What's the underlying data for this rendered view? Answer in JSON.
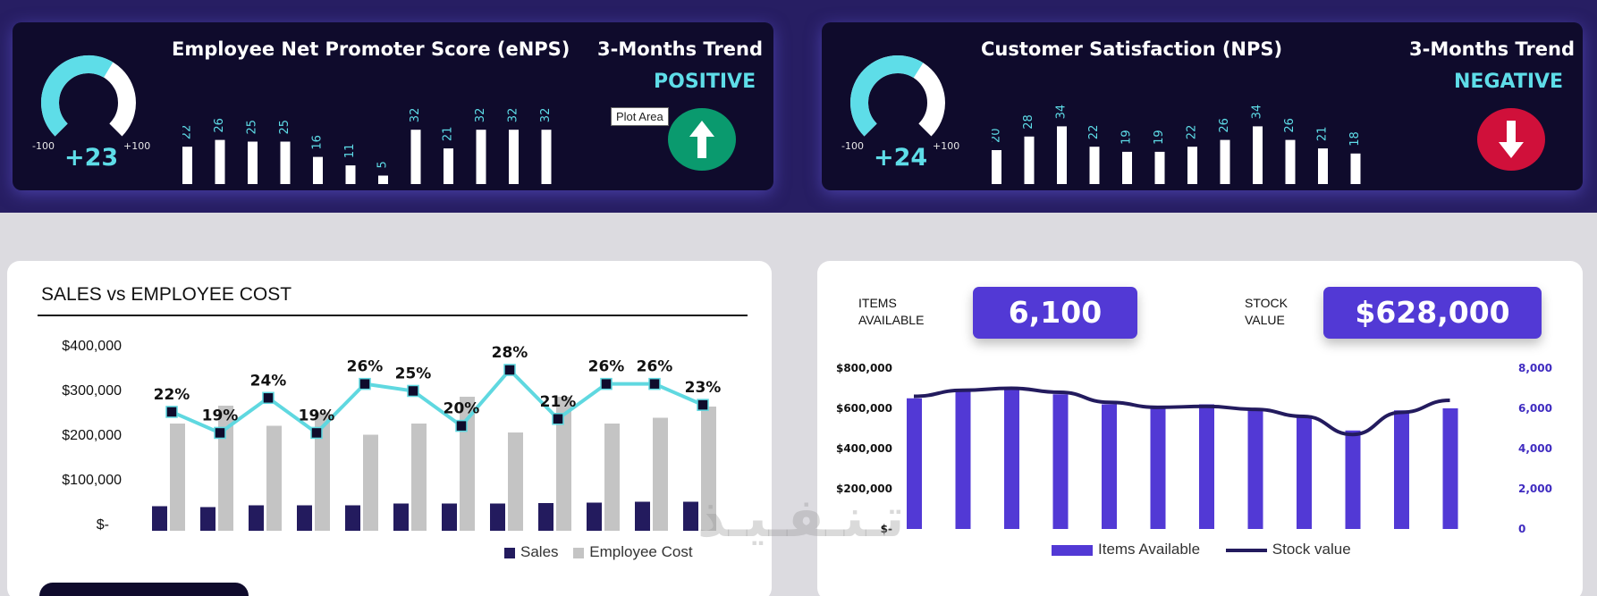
{
  "enps": {
    "title": "Employee Net Promoter Score (eNPS)",
    "score": "+23",
    "gauge_fraction": 0.615,
    "gauge_min": "-100",
    "gauge_max": "+100",
    "trend_heading": "3-Months Trend",
    "trend_value": "POSITIVE",
    "bars": [
      "22",
      "26",
      "25",
      "25",
      "16",
      "11",
      "5",
      "32",
      "21",
      "32",
      "32",
      "32"
    ],
    "trend_icon": "arrow-up-icon"
  },
  "nps": {
    "title": "Customer Satisfaction (NPS)",
    "score": "+24",
    "gauge_fraction": 0.62,
    "gauge_min": "-100",
    "gauge_max": "+100",
    "trend_heading": "3-Months Trend",
    "trend_value": "NEGATIVE",
    "bars": [
      "20",
      "28",
      "34",
      "22",
      "19",
      "19",
      "22",
      "26",
      "34",
      "26",
      "21",
      "18"
    ],
    "trend_icon": "arrow-down-icon"
  },
  "tooltip": "Plot Area",
  "sales_chart": {
    "title": "SALES vs EMPLOYEE COST",
    "yticks": [
      "$400,000",
      "$300,000",
      "$200,000",
      "$100,000",
      "$-"
    ],
    "legend": [
      "Sales",
      "Employee Cost"
    ],
    "sales": [
      55000,
      53000,
      57000,
      57000,
      57000,
      61000,
      61000,
      61000,
      62000,
      63000,
      65000,
      65000
    ],
    "employee_cost": [
      240000,
      280000,
      235000,
      265000,
      215000,
      240000,
      300000,
      220000,
      300000,
      240000,
      253000,
      278000
    ],
    "ratio": [
      22,
      19,
      24,
      19,
      26,
      25,
      20,
      28,
      21,
      26,
      26,
      23
    ],
    "ratio_labels": [
      "22%",
      "19%",
      "24%",
      "19%",
      "26%",
      "25%",
      "20%",
      "28%",
      "21%",
      "26%",
      "26%",
      "23%"
    ],
    "colors": {
      "sales": "#231b5e",
      "cost": "#c4c4c4",
      "line": "#5fd8e0"
    }
  },
  "stock": {
    "items_label": "ITEMS AVAILABLE",
    "items_value": "6,100",
    "stock_label": "STOCK VALUE",
    "stock_value": "$628,000",
    "left_ticks": [
      "$800,000",
      "$600,000",
      "$400,000",
      "$200,000",
      "$-"
    ],
    "right_ticks": [
      "8,000",
      "6,000",
      "4,000",
      "2,000",
      "0"
    ],
    "items_available": [
      6500,
      6900,
      7000,
      6700,
      6200,
      6050,
      6200,
      6000,
      5650,
      4900,
      5900,
      6000
    ],
    "stock_value_series": [
      660000,
      690000,
      700000,
      680000,
      630000,
      605000,
      610000,
      595000,
      560000,
      470000,
      580000,
      640000
    ],
    "legend": [
      "Items Available",
      "Stock value"
    ],
    "colors": {
      "bars": "#5239d5",
      "line": "#231b5e"
    }
  },
  "watermark": "تـنـفـيـذ"
}
